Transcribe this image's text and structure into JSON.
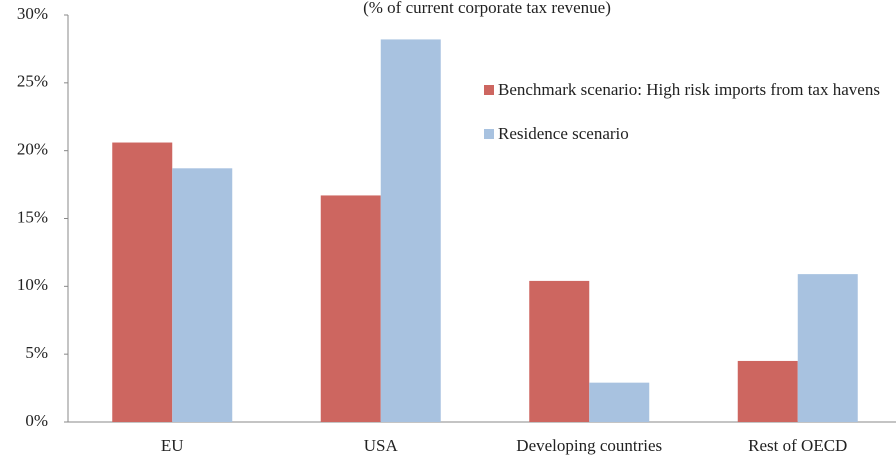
{
  "chart_data": {
    "type": "bar",
    "subtitle": "(% of current corporate tax revenue)",
    "categories": [
      "EU",
      "USA",
      "Developing countries",
      "Rest of OECD"
    ],
    "series": [
      {
        "name": "Benchmark scenario: High risk imports from tax havens",
        "color": "#cd6660",
        "values": [
          20.6,
          16.7,
          10.4,
          4.5
        ]
      },
      {
        "name": "Residence scenario",
        "color": "#a8c2e0",
        "values": [
          18.7,
          28.2,
          2.9,
          10.9
        ]
      }
    ],
    "ylim": [
      0,
      30
    ],
    "yticks": [
      {
        "value": 0,
        "label": "0%"
      },
      {
        "value": 5,
        "label": "5%"
      },
      {
        "value": 10,
        "label": "10%"
      },
      {
        "value": 15,
        "label": "15%"
      },
      {
        "value": 20,
        "label": "20%"
      },
      {
        "value": 25,
        "label": "25%"
      },
      {
        "value": 30,
        "label": "30%"
      }
    ],
    "grid": false
  }
}
